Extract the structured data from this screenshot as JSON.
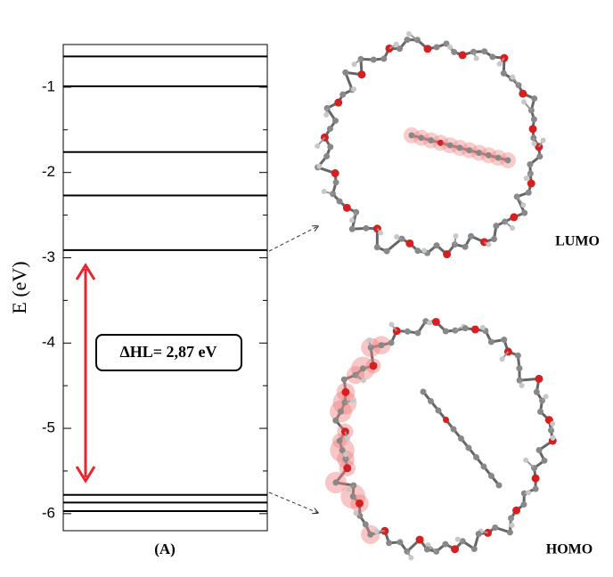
{
  "chart_data": {
    "type": "energy-levels",
    "ylabel": "E (eV)",
    "xlabel": "(A)",
    "levels": [
      -0.64,
      -0.99,
      -1.76,
      -2.27,
      -2.91,
      -5.78,
      -5.87,
      -5.97
    ],
    "level_color": "#000000",
    "ylim": [
      -6.2,
      -0.5
    ],
    "yticks": [
      -6,
      -5,
      -4,
      -3,
      -2,
      -1
    ],
    "minor_yticks": [
      -5.5,
      -4.5,
      -3.5,
      -2.5,
      -1.5
    ],
    "annotation": "ΔHL= 2,87 eV",
    "arrow_color": "#e8242c",
    "orbital_labels": [
      "LUMO",
      "HOMO"
    ]
  }
}
